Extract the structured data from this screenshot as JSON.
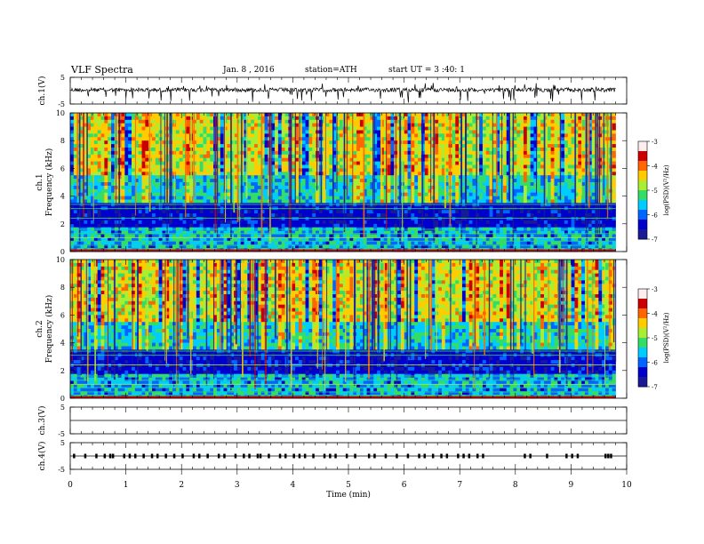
{
  "header": {
    "title": "VLF Spectra",
    "date": "Jan. 8 , 2016",
    "station": "station=ATH",
    "start": "start UT = 3 :40: 1"
  },
  "chart_data": [
    {
      "id": "ch1-waveform",
      "type": "line",
      "ylabel": "ch.1(V)",
      "yticks": [
        "5",
        "-5"
      ],
      "ylim": [
        -5,
        5
      ],
      "xlim": [
        0,
        10
      ],
      "data_extent_min": 9.8,
      "baseline": 0.3,
      "description_values": "noisy trace near 0 V with negative spikes to about -2 V"
    },
    {
      "id": "ch1-spectrogram",
      "type": "heatmap",
      "ylabel": "ch.1",
      "ylabel2": "Frequency (kHz)",
      "yticks": [
        "0",
        "2",
        "4",
        "6",
        "8",
        "10"
      ],
      "ylim": [
        0,
        10
      ],
      "xlim": [
        0,
        10
      ],
      "data_extent_min": 9.8,
      "colorbar": {
        "label": "log(PSD)(V²/Hz)",
        "ticks": [
          "-3",
          "-4",
          "-5",
          "-6",
          "-7"
        ],
        "range": [
          -7,
          -3
        ]
      }
    },
    {
      "id": "ch2-spectrogram",
      "type": "heatmap",
      "ylabel": "ch.2",
      "ylabel2": "Frequency (kHz)",
      "yticks": [
        "0",
        "2",
        "4",
        "6",
        "8",
        "10"
      ],
      "ylim": [
        0,
        10
      ],
      "xlim": [
        0,
        10
      ],
      "data_extent_min": 9.8,
      "colorbar": {
        "label": "log(PSD)(V²/Hz)",
        "ticks": [
          "-3",
          "-4",
          "-5",
          "-6",
          "-7"
        ],
        "range": [
          -7,
          -3
        ]
      }
    },
    {
      "id": "ch3-waveform",
      "type": "line",
      "ylabel": "ch.3(V)",
      "yticks": [
        "5",
        "-5"
      ],
      "ylim": [
        -5,
        5
      ],
      "xlim": [
        0,
        10
      ],
      "baseline": 0
    },
    {
      "id": "ch4-waveform",
      "type": "line",
      "ylabel": "ch.4(V)",
      "yticks": [
        "5",
        "-5"
      ],
      "ylim": [
        -5,
        5
      ],
      "xlim": [
        0,
        10
      ],
      "baseline": 0,
      "pulse_times_min": [
        0.05,
        0.25,
        0.45,
        0.6,
        0.7,
        0.75,
        0.95,
        1.05,
        1.15,
        1.3,
        1.45,
        1.55,
        1.7,
        1.85,
        2.0,
        2.2,
        2.3,
        2.45,
        2.65,
        2.75,
        2.95,
        3.1,
        3.2,
        3.35,
        3.4,
        3.55,
        3.75,
        3.85,
        4.0,
        4.1,
        4.2,
        4.35,
        4.55,
        4.65,
        4.75,
        4.95,
        5.1,
        5.35,
        5.45,
        5.65,
        5.85,
        6.05,
        6.25,
        6.35,
        6.5,
        6.65,
        6.75,
        6.95,
        7.05,
        7.15,
        7.3,
        7.4,
        8.15,
        8.25,
        8.55,
        8.9,
        9.0,
        9.1,
        9.6,
        9.65,
        9.7
      ]
    }
  ],
  "x_axis": {
    "label": "Time  (min)",
    "ticks": [
      "0",
      "1",
      "2",
      "3",
      "4",
      "5",
      "6",
      "7",
      "8",
      "9",
      "10"
    ],
    "range": [
      0,
      10
    ]
  },
  "colors": {
    "cmap": [
      "#1a1a99",
      "#0000cc",
      "#0066ff",
      "#00ccff",
      "#33dd66",
      "#aaee33",
      "#ffcc00",
      "#ff6600",
      "#cc0000",
      "#ffeeee"
    ]
  }
}
